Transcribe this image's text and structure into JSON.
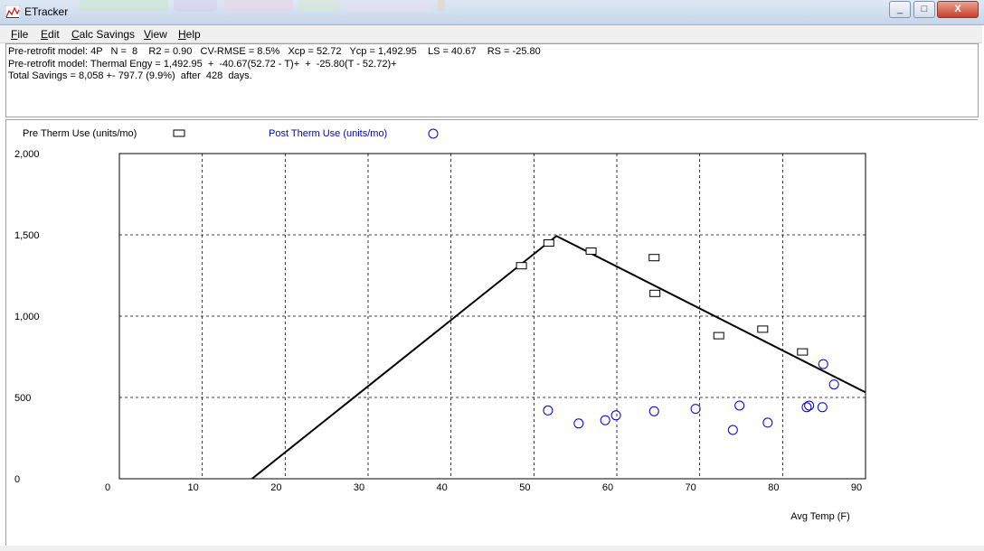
{
  "window": {
    "title": "ETracker",
    "minimize_label": "_",
    "maximize_label": "□",
    "close_label": "X",
    "ghost_tab_colors": [
      "#c8e6c8",
      "#d8ccee",
      "#e6d2e6",
      "#d6e8d0",
      "#e2e0ee",
      "#e8d0b8"
    ]
  },
  "menu": {
    "items": [
      {
        "underline": "F",
        "rest": "ile"
      },
      {
        "underline": "E",
        "rest": "dit"
      },
      {
        "underline": "C",
        "rest": "alc Savings"
      },
      {
        "underline": "V",
        "rest": "iew"
      },
      {
        "underline": "H",
        "rest": "elp"
      }
    ]
  },
  "info": {
    "line1": "Pre-retrofit model: 4P   N =  8    R2 = 0.90   CV-RMSE = 8.5%   Xcp = 52.72   Ycp = 1,492.95    LS = 40.67    RS = -25.80",
    "line2": "Pre-retrofit model: Thermal Engy = 1,492.95  +  -40.67(52.72 - T)+  +  -25.80(T - 52.72)+",
    "line3": "Total Savings = 8,058 +- 797.7 (9.9%)  after  428  days."
  },
  "chart_data": {
    "type": "scatter",
    "xlabel": "Avg Temp (F)",
    "ylabel": "",
    "xlim": [
      0,
      90
    ],
    "ylim": [
      0,
      2000
    ],
    "x_ticks": [
      "0",
      "10",
      "20",
      "30",
      "40",
      "50",
      "60",
      "70",
      "80",
      "90"
    ],
    "y_ticks": [
      "0",
      "500",
      "1,000",
      "1,500",
      "2,000"
    ],
    "grid": true,
    "legend_position": "top-left",
    "series": [
      {
        "name": "Pre Therm Use (units/mo)",
        "marker": "square",
        "color": "#000000",
        "points": [
          [
            48.5,
            1310
          ],
          [
            51.8,
            1450
          ],
          [
            56.9,
            1400
          ],
          [
            64.5,
            1360
          ],
          [
            64.6,
            1140
          ],
          [
            72.3,
            880
          ],
          [
            77.6,
            920
          ],
          [
            82.4,
            780
          ]
        ]
      },
      {
        "name": "Post Therm Use (units/mo)",
        "marker": "circle",
        "color": "#0000cc",
        "points": [
          [
            51.7,
            420
          ],
          [
            55.4,
            340
          ],
          [
            58.6,
            360
          ],
          [
            59.9,
            390
          ],
          [
            64.5,
            415
          ],
          [
            69.5,
            430
          ],
          [
            74.0,
            300
          ],
          [
            74.8,
            450
          ],
          [
            78.2,
            345
          ],
          [
            82.9,
            440
          ],
          [
            83.2,
            450
          ],
          [
            84.8,
            440
          ],
          [
            84.9,
            705
          ],
          [
            86.2,
            580
          ]
        ]
      }
    ],
    "model_line": {
      "color": "#000000",
      "points": [
        [
          16.0,
          0
        ],
        [
          52.72,
          1492.95
        ],
        [
          90,
          531
        ]
      ]
    }
  }
}
